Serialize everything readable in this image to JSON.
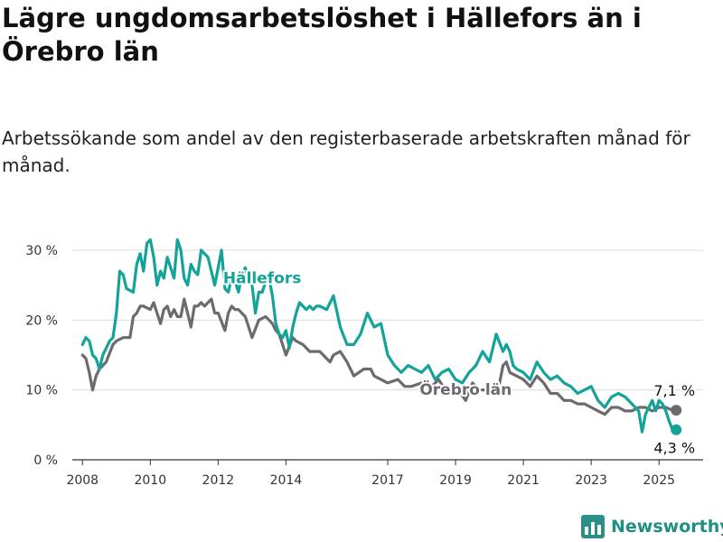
{
  "title": "Lägre ungdomsarbetslöshet i Hällefors än i Örebro län",
  "subtitle": "Arbetssökande som andel av den registerbaserade arbetskraften månad för månad.",
  "brand": {
    "name": "Newsworthy",
    "icon": "newsworthy-logo-icon",
    "color": "#2a8f86"
  },
  "chart_data": {
    "type": "line",
    "x_unit": "year",
    "xlim": [
      2007.7,
      2026.3
    ],
    "ylim": [
      0,
      32
    ],
    "y_ticks": [
      0,
      10,
      20,
      30
    ],
    "y_tick_labels": [
      "0 %",
      "10 %",
      "20 %",
      "30 %"
    ],
    "x_ticks": [
      2008,
      2010,
      2012,
      2014,
      2017,
      2019,
      2021,
      2023,
      2025
    ],
    "x_tick_labels": [
      "2008",
      "2010",
      "2012",
      "2014",
      "2017",
      "2019",
      "2021",
      "2023",
      "2025"
    ],
    "grid": "horizontal",
    "xlabel": "",
    "ylabel": "",
    "series": [
      {
        "name": "Hällefors",
        "color": "#13a398",
        "end_label": "4,3 %",
        "x": [
          2008.0,
          2008.1,
          2008.2,
          2008.3,
          2008.4,
          2008.5,
          2008.6,
          2008.8,
          2008.9,
          2009.0,
          2009.1,
          2009.2,
          2009.3,
          2009.5,
          2009.6,
          2009.7,
          2009.8,
          2009.9,
          2010.0,
          2010.1,
          2010.2,
          2010.3,
          2010.4,
          2010.5,
          2010.6,
          2010.7,
          2010.8,
          2010.9,
          2011.0,
          2011.1,
          2011.2,
          2011.3,
          2011.4,
          2011.5,
          2011.6,
          2011.7,
          2011.8,
          2011.9,
          2012.0,
          2012.1,
          2012.2,
          2012.3,
          2012.4,
          2012.5,
          2012.6,
          2012.7,
          2012.8,
          2012.9,
          2013.0,
          2013.1,
          2013.2,
          2013.3,
          2013.4,
          2013.5,
          2013.6,
          2013.7,
          2013.8,
          2013.9,
          2014.0,
          2014.1,
          2014.2,
          2014.3,
          2014.4,
          2014.5,
          2014.6,
          2014.7,
          2014.8,
          2014.9,
          2015.0,
          2015.2,
          2015.4,
          2015.6,
          2015.8,
          2016.0,
          2016.2,
          2016.4,
          2016.6,
          2016.8,
          2017.0,
          2017.2,
          2017.4,
          2017.6,
          2017.8,
          2018.0,
          2018.2,
          2018.4,
          2018.6,
          2018.8,
          2019.0,
          2019.2,
          2019.4,
          2019.6,
          2019.8,
          2020.0,
          2020.2,
          2020.4,
          2020.5,
          2020.6,
          2020.7,
          2020.8,
          2021.0,
          2021.2,
          2021.4,
          2021.6,
          2021.8,
          2022.0,
          2022.2,
          2022.4,
          2022.6,
          2022.8,
          2023.0,
          2023.2,
          2023.4,
          2023.6,
          2023.8,
          2024.0,
          2024.2,
          2024.4,
          2024.5,
          2024.6,
          2024.7,
          2024.8,
          2024.9,
          2025.0,
          2025.1,
          2025.2,
          2025.3,
          2025.4
        ],
        "y": [
          16.5,
          17.5,
          17.0,
          15.0,
          14.5,
          13.0,
          15.0,
          17.0,
          17.5,
          21.0,
          27.0,
          26.5,
          24.5,
          24.0,
          28.0,
          29.5,
          27.0,
          31.0,
          31.5,
          29.0,
          25.0,
          27.0,
          26.0,
          29.0,
          27.5,
          26.0,
          31.5,
          30.0,
          26.0,
          25.0,
          28.0,
          27.0,
          26.5,
          30.0,
          29.5,
          29.0,
          27.0,
          25.0,
          27.5,
          30.0,
          24.5,
          24.0,
          26.0,
          25.5,
          24.0,
          26.5,
          27.5,
          26.0,
          25.0,
          21.0,
          24.0,
          24.0,
          25.5,
          26.0,
          23.5,
          19.5,
          18.0,
          17.5,
          18.5,
          16.0,
          19.0,
          21.0,
          22.5,
          22.0,
          21.5,
          22.0,
          21.5,
          22.0,
          22.0,
          21.5,
          23.5,
          19.0,
          16.5,
          16.5,
          18.0,
          21.0,
          19.0,
          19.5,
          15.0,
          13.5,
          12.5,
          13.5,
          13.0,
          12.5,
          13.5,
          11.5,
          12.5,
          13.0,
          11.5,
          11.0,
          12.5,
          13.5,
          15.5,
          14.0,
          18.0,
          15.5,
          16.5,
          15.5,
          13.5,
          13.0,
          12.5,
          11.5,
          14.0,
          12.5,
          11.5,
          12.0,
          11.0,
          10.5,
          9.5,
          10.0,
          10.5,
          8.5,
          7.5,
          9.0,
          9.5,
          9.0,
          8.0,
          7.0,
          4.0,
          6.5,
          7.5,
          8.5,
          7.0,
          8.5,
          8.0,
          7.0,
          5.5,
          4.3
        ],
        "label": "Hällefors"
      },
      {
        "name": "Örebro län",
        "color": "#6d6a6f",
        "end_label": "7,1 %",
        "x": [
          2008.0,
          2008.1,
          2008.2,
          2008.3,
          2008.4,
          2008.5,
          2008.7,
          2008.9,
          2009.0,
          2009.2,
          2009.4,
          2009.5,
          2009.6,
          2009.7,
          2009.8,
          2010.0,
          2010.1,
          2010.2,
          2010.3,
          2010.4,
          2010.5,
          2010.6,
          2010.7,
          2010.8,
          2010.9,
          2011.0,
          2011.1,
          2011.2,
          2011.3,
          2011.4,
          2011.5,
          2011.6,
          2011.7,
          2011.8,
          2011.9,
          2012.0,
          2012.2,
          2012.3,
          2012.4,
          2012.5,
          2012.6,
          2012.7,
          2012.8,
          2013.0,
          2013.2,
          2013.4,
          2013.5,
          2013.6,
          2013.7,
          2013.8,
          2014.0,
          2014.2,
          2014.3,
          2014.5,
          2014.7,
          2015.0,
          2015.3,
          2015.4,
          2015.6,
          2015.8,
          2016.0,
          2016.3,
          2016.5,
          2016.6,
          2016.8,
          2017.0,
          2017.3,
          2017.5,
          2017.7,
          2018.0,
          2018.3,
          2018.5,
          2018.7,
          2019.0,
          2019.3,
          2019.5,
          2019.7,
          2020.0,
          2020.2,
          2020.3,
          2020.4,
          2020.5,
          2020.6,
          2020.8,
          2021.0,
          2021.2,
          2021.4,
          2021.6,
          2021.8,
          2022.0,
          2022.2,
          2022.4,
          2022.6,
          2022.8,
          2023.0,
          2023.2,
          2023.4,
          2023.6,
          2023.8,
          2024.0,
          2024.2,
          2024.4,
          2024.6,
          2024.8,
          2025.0,
          2025.2,
          2025.4
        ],
        "y": [
          15.0,
          14.5,
          12.5,
          10.0,
          12.0,
          13.0,
          14.0,
          16.5,
          17.0,
          17.5,
          17.5,
          20.5,
          21.0,
          22.0,
          22.0,
          21.5,
          22.5,
          21.0,
          19.5,
          21.5,
          22.0,
          20.5,
          21.5,
          20.5,
          20.5,
          23.0,
          21.0,
          19.0,
          22.0,
          22.0,
          22.5,
          22.0,
          22.5,
          23.0,
          21.0,
          21.0,
          18.5,
          21.0,
          22.0,
          21.5,
          21.5,
          21.0,
          20.5,
          17.5,
          20.0,
          20.5,
          20.0,
          19.5,
          18.5,
          18.0,
          15.0,
          17.5,
          17.0,
          16.5,
          15.5,
          15.5,
          14.0,
          15.0,
          15.5,
          14.0,
          12.0,
          13.0,
          13.0,
          12.0,
          11.5,
          11.0,
          11.5,
          10.5,
          10.5,
          11.0,
          10.5,
          11.5,
          10.0,
          10.5,
          8.5,
          11.0,
          10.0,
          10.0,
          10.5,
          11.0,
          13.5,
          14.0,
          12.5,
          12.0,
          11.5,
          10.5,
          12.0,
          11.0,
          9.5,
          9.5,
          8.5,
          8.5,
          8.0,
          8.0,
          7.5,
          7.0,
          6.5,
          7.5,
          7.5,
          7.0,
          7.0,
          7.5,
          7.5,
          7.0,
          7.5,
          7.5,
          7.1
        ],
        "label": "Örebro län"
      }
    ]
  }
}
